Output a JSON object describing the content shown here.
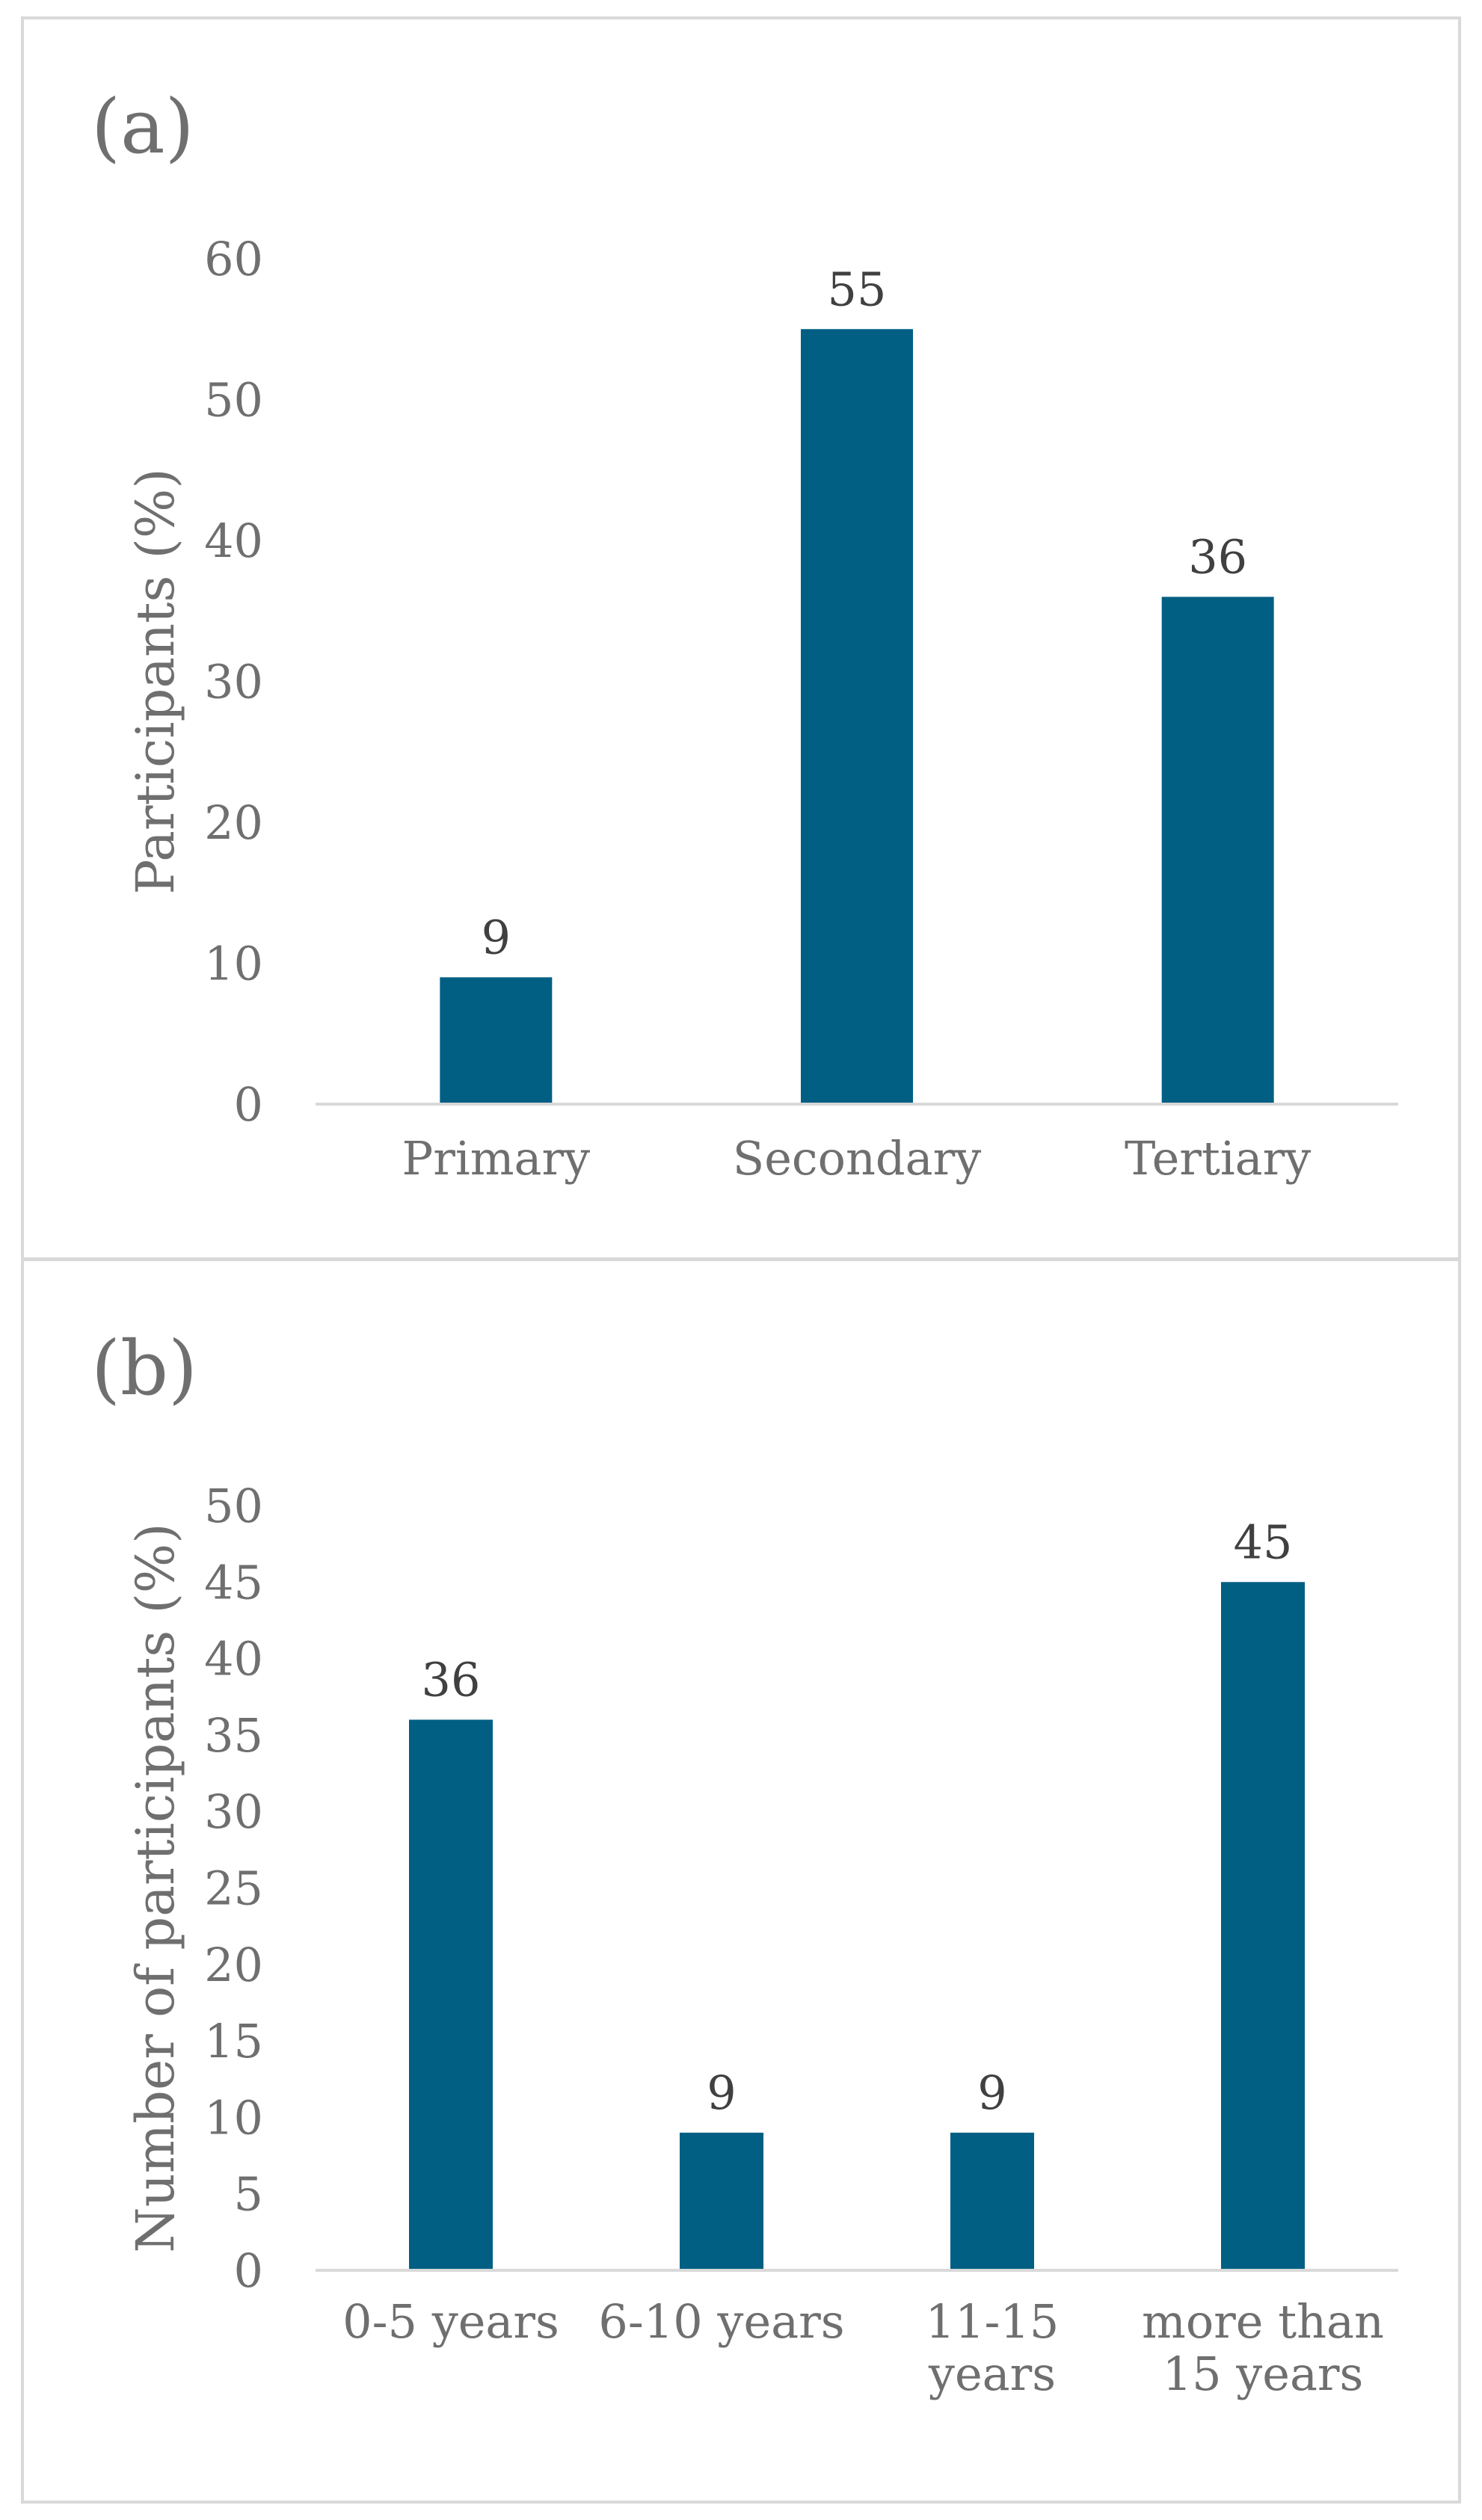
{
  "chart_data": [
    {
      "panel_label": "(a)",
      "type": "bar",
      "title": "",
      "xlabel": "",
      "ylabel": "Participants (%)",
      "ylim": [
        0,
        60
      ],
      "yticks": [
        0,
        10,
        20,
        30,
        40,
        50,
        60
      ],
      "grid": false,
      "categories": [
        [
          "Primary"
        ],
        [
          "Secondary"
        ],
        [
          "Tertiary"
        ]
      ],
      "values": [
        9,
        55,
        36
      ],
      "bar_color": "#005f83"
    },
    {
      "panel_label": "(b)",
      "type": "bar",
      "title": "",
      "xlabel": "",
      "ylabel": "Number of participants (%)",
      "ylim": [
        0,
        50
      ],
      "yticks": [
        0,
        5,
        10,
        15,
        20,
        25,
        30,
        35,
        40,
        45,
        50
      ],
      "grid": false,
      "categories": [
        [
          "0-5 years"
        ],
        [
          "6-10 years"
        ],
        [
          "11-15",
          "years"
        ],
        [
          "more than",
          "15 years"
        ]
      ],
      "values": [
        36,
        9,
        9,
        45
      ],
      "bar_color": "#005f83"
    }
  ]
}
